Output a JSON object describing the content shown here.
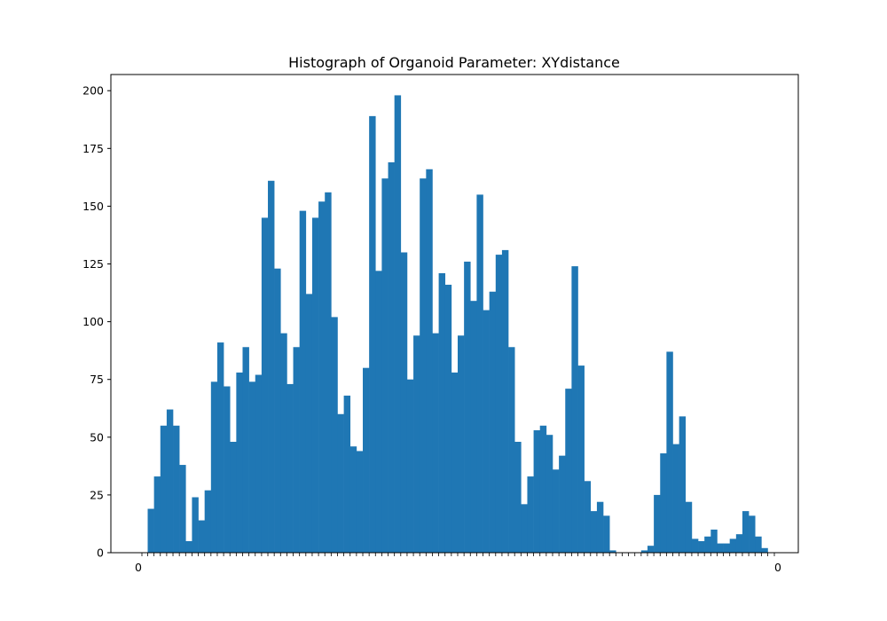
{
  "colors": {
    "bar": "#1f77b4",
    "axis": "#000000",
    "background": "#ffffff"
  },
  "chart_data": {
    "type": "bar",
    "title": "Histograph of Organoid Parameter: XYdistance",
    "xlabel": "",
    "ylabel": "",
    "ylim": [
      0,
      207
    ],
    "yticks": [
      0,
      25,
      50,
      75,
      100,
      125,
      150,
      175,
      200
    ],
    "grid": false,
    "legend": "none",
    "x_tick_labels_note": "x tick labels are dense overlapping numeric bin edges; only the outer ones are legible",
    "x_tick_label_first": "0",
    "x_tick_label_last": "0",
    "values": [
      19,
      33,
      55,
      62,
      55,
      38,
      5,
      24,
      14,
      27,
      74,
      91,
      72,
      48,
      78,
      89,
      74,
      77,
      145,
      161,
      123,
      95,
      73,
      89,
      148,
      112,
      145,
      152,
      156,
      102,
      60,
      68,
      46,
      44,
      80,
      189,
      122,
      162,
      169,
      198,
      130,
      75,
      94,
      162,
      166,
      95,
      121,
      116,
      78,
      94,
      126,
      109,
      155,
      105,
      113,
      129,
      131,
      89,
      48,
      21,
      33,
      53,
      55,
      51,
      36,
      42,
      71,
      124,
      81,
      31,
      18,
      22,
      16,
      1,
      0,
      0,
      0,
      0,
      1,
      3,
      25,
      43,
      87,
      47,
      59,
      22,
      6,
      5,
      7,
      10,
      4,
      4,
      6,
      8,
      18,
      16,
      7,
      2
    ]
  }
}
